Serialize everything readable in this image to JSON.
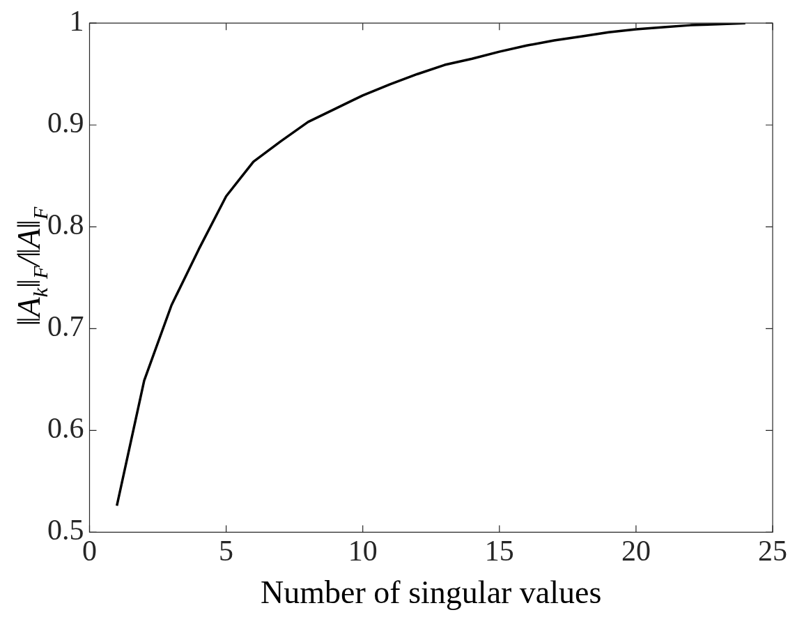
{
  "chart_data": {
    "type": "line",
    "xlabel": "Number of singular values",
    "ylabel": "‖A$_{k}$‖$_{F}$/‖A‖$_{F}$",
    "x": [
      1,
      2,
      3,
      4,
      5,
      6,
      7,
      8,
      9,
      10,
      11,
      12,
      13,
      14,
      15,
      16,
      17,
      18,
      19,
      20,
      21,
      22,
      23,
      24
    ],
    "series": [
      {
        "color": "#000000",
        "values": [
          0.526,
          0.649,
          0.723,
          0.778,
          0.83,
          0.864,
          0.884,
          0.903,
          0.916,
          0.929,
          0.94,
          0.95,
          0.959,
          0.965,
          0.972,
          0.978,
          0.983,
          0.987,
          0.991,
          0.994,
          0.996,
          0.998,
          0.999,
          1.0
        ]
      }
    ],
    "xlim": [
      0,
      25
    ],
    "xticks": [
      0,
      5,
      10,
      15,
      20,
      25
    ],
    "ylim": [
      0.5,
      1
    ],
    "yticks": [
      0.5,
      0.6,
      0.7,
      0.8,
      0.9,
      1
    ],
    "grid": false,
    "legend": false,
    "marker": "none",
    "line_style": "solid"
  }
}
